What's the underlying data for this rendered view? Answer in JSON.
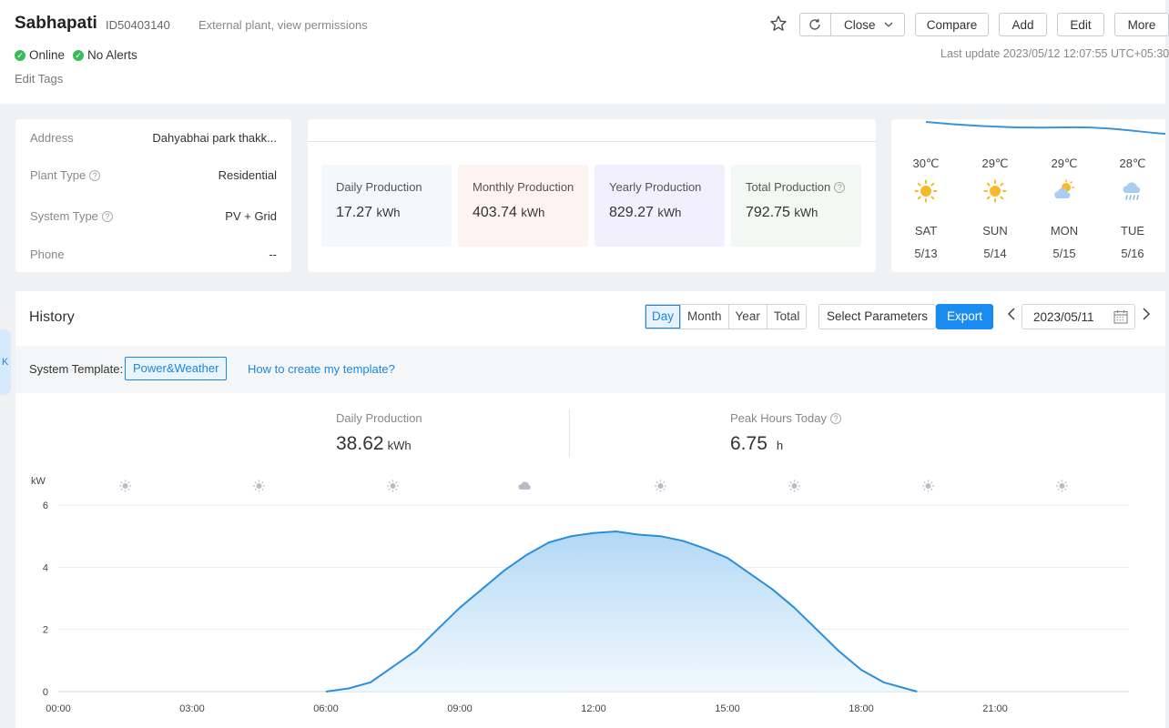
{
  "header": {
    "name": "Sabhapati",
    "id": "ID50403140",
    "note": "External plant, view permissions",
    "status_online": "Online",
    "status_alerts": "No Alerts",
    "edit_tags": "Edit Tags",
    "last_update": "Last update 2023/05/12 12:07:55 UTC+05:30",
    "buttons": {
      "close": "Close",
      "compare": "Compare",
      "add": "Add",
      "edit": "Edit",
      "more": "More"
    }
  },
  "info": {
    "address_label": "Address",
    "address_value": "Dahyabhai park thakk...",
    "plant_type_label": "Plant Type",
    "plant_type_value": "Residential",
    "system_type_label": "System Type",
    "system_type_value": "PV + Grid",
    "phone_label": "Phone",
    "phone_value": "--"
  },
  "production": [
    {
      "label": "Daily Production",
      "value": "17.27",
      "unit": "kWh",
      "bg": "#f3f8fd"
    },
    {
      "label": "Monthly Production",
      "value": "403.74",
      "unit": "kWh",
      "bg": "#fdf4f1"
    },
    {
      "label": "Yearly Production",
      "value": "829.27",
      "unit": "kWh",
      "bg": "#f1f0fc"
    },
    {
      "label": "Total Production",
      "value": "792.75",
      "unit": "kWh",
      "bg": "#f2f8f3"
    }
  ],
  "weather": [
    {
      "temp": "30℃",
      "icon": "sun-icon",
      "day": "SAT",
      "date": "5/13"
    },
    {
      "temp": "29℃",
      "icon": "sun-icon",
      "day": "SUN",
      "date": "5/14"
    },
    {
      "temp": "29℃",
      "icon": "partly-cloudy-icon",
      "day": "MON",
      "date": "5/15"
    },
    {
      "temp": "28℃",
      "icon": "rain-icon",
      "day": "TUE",
      "date": "5/16"
    }
  ],
  "history": {
    "title": "History",
    "tabs": [
      "Day",
      "Month",
      "Year",
      "Total"
    ],
    "active_tab": "Day",
    "select_params": "Select Parameters",
    "export": "Export",
    "date": "2023/05/11",
    "template_label": "System Template:",
    "template_chip": "Power&Weather",
    "template_link": "How to create my template?",
    "daily_label": "Daily Production",
    "daily_value": "38.62",
    "daily_unit": "kWh",
    "peak_label": "Peak Hours Today",
    "peak_value": "6.75",
    "peak_unit": "h"
  },
  "side_tab": "K",
  "colors": {
    "accent": "#1a8cf0",
    "line": "#2a8fdb",
    "online": "#3dbb5c"
  },
  "chart_data": {
    "type": "area",
    "ylabel": "kW",
    "ylim": [
      0,
      6
    ],
    "yticks": [
      0,
      2,
      4,
      6
    ],
    "xlim": [
      0,
      24
    ],
    "xticks": [
      "00:00",
      "03:00",
      "06:00",
      "09:00",
      "12:00",
      "15:00",
      "18:00",
      "21:00"
    ],
    "weather_icons": [
      "sun",
      "sun",
      "sun",
      "cloud",
      "sun",
      "sun",
      "sun",
      "sun"
    ],
    "x": [
      6.0,
      6.5,
      7.0,
      7.5,
      8.0,
      8.5,
      9.0,
      9.5,
      10.0,
      10.5,
      11.0,
      11.5,
      12.0,
      12.5,
      13.0,
      13.5,
      14.0,
      14.5,
      15.0,
      15.5,
      16.0,
      16.5,
      17.0,
      17.5,
      18.0,
      18.5,
      19.0,
      19.25
    ],
    "values": [
      0.0,
      0.1,
      0.3,
      0.8,
      1.3,
      2.0,
      2.7,
      3.3,
      3.9,
      4.4,
      4.8,
      5.0,
      5.1,
      5.15,
      5.05,
      5.0,
      4.85,
      4.6,
      4.3,
      3.8,
      3.3,
      2.7,
      2.0,
      1.3,
      0.7,
      0.3,
      0.1,
      0.0
    ]
  }
}
